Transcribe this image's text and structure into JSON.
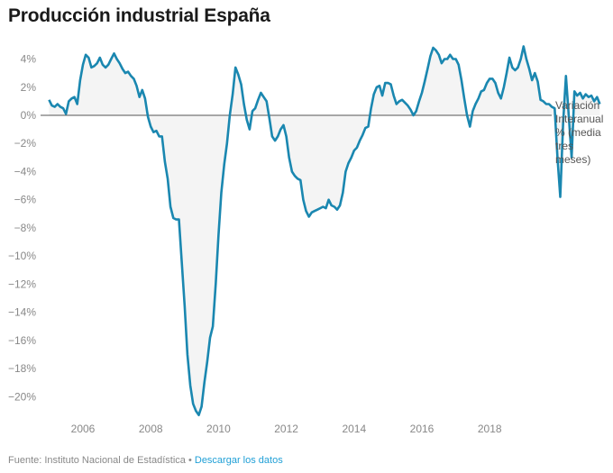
{
  "chart_data": {
    "type": "area",
    "title": "Producción industrial España",
    "xlabel": "",
    "ylabel": "",
    "series_label_lines": [
      "Variación",
      "Interanual",
      "% (media",
      "tres",
      "meses)"
    ],
    "x_start": 2005.0,
    "x_step_months": 1,
    "x_ticks": [
      2006,
      2008,
      2010,
      2012,
      2014,
      2016,
      2018
    ],
    "x_tick_labels": [
      "2006",
      "2008",
      "2010",
      "2012",
      "2014",
      "2016",
      "2018"
    ],
    "xlim": [
      2004.6,
      2019.9
    ],
    "y_ticks": [
      4,
      2,
      0,
      -2,
      -4,
      -6,
      -8,
      -10,
      -12,
      -14,
      -16,
      -18,
      -20
    ],
    "y_tick_labels": [
      "4%",
      "2%",
      "0%",
      "−2%",
      "−4%",
      "−6%",
      "−8%",
      "−10%",
      "−12%",
      "−14%",
      "−16%",
      "−18%",
      "−20%"
    ],
    "ylim": [
      -21.5,
      5
    ],
    "grid": false,
    "baseline": 0,
    "series": [
      {
        "name": "Variación Interanual % (media tres meses)",
        "color": "#1a87b0",
        "fill": "#f4f4f4",
        "values": [
          1.1,
          0.7,
          0.6,
          0.8,
          0.6,
          0.5,
          0.1,
          1.0,
          1.2,
          1.3,
          0.8,
          2.5,
          3.6,
          4.3,
          4.1,
          3.4,
          3.5,
          3.7,
          4.1,
          3.6,
          3.4,
          3.6,
          4.0,
          4.4,
          4.0,
          3.7,
          3.3,
          3.0,
          3.1,
          2.8,
          2.6,
          2.1,
          1.3,
          1.8,
          1.2,
          -0.1,
          -0.8,
          -1.2,
          -1.1,
          -1.5,
          -1.5,
          -3.3,
          -4.5,
          -6.5,
          -7.3,
          -7.4,
          -7.4,
          -10.5,
          -13.5,
          -17.0,
          -19.2,
          -20.5,
          -21.0,
          -21.3,
          -20.7,
          -19.0,
          -17.5,
          -15.8,
          -15.0,
          -12.0,
          -8.5,
          -5.5,
          -3.5,
          -2.0,
          0.0,
          1.5,
          3.4,
          2.9,
          2.2,
          0.8,
          -0.3,
          -1.0,
          0.3,
          0.5,
          1.1,
          1.6,
          1.3,
          1.0,
          -0.2,
          -1.5,
          -1.8,
          -1.5,
          -1.0,
          -0.7,
          -1.5,
          -3.0,
          -4.0,
          -4.3,
          -4.5,
          -4.6,
          -6.0,
          -6.8,
          -7.2,
          -6.9,
          -6.8,
          -6.7,
          -6.6,
          -6.5,
          -6.6,
          -6.0,
          -6.4,
          -6.5,
          -6.7,
          -6.4,
          -5.5,
          -4.0,
          -3.4,
          -3.0,
          -2.5,
          -2.3,
          -1.8,
          -1.4,
          -0.9,
          -0.8,
          0.5,
          1.5,
          2.0,
          2.1,
          1.4,
          2.3,
          2.3,
          2.2,
          1.4,
          0.8,
          1.0,
          1.1,
          0.9,
          0.7,
          0.4,
          0.0,
          0.3,
          1.0,
          1.6,
          2.4,
          3.3,
          4.2,
          4.8,
          4.6,
          4.3,
          3.7,
          4.0,
          4.0,
          4.3,
          4.0,
          4.0,
          3.6,
          2.5,
          1.2,
          0.0,
          -0.8,
          0.3,
          0.8,
          1.2,
          1.7,
          1.8,
          2.3,
          2.6,
          2.6,
          2.3,
          1.6,
          1.2,
          2.0,
          3.0,
          4.1,
          3.4,
          3.2,
          3.4,
          4.0,
          4.9,
          4.0,
          3.3,
          2.5,
          3.0,
          2.4,
          1.1,
          1.0,
          0.8,
          0.8,
          0.6,
          0.5,
          -3.0,
          -5.8,
          -0.5,
          2.8,
          0.0,
          -3.0,
          1.7,
          1.4,
          1.6,
          1.2,
          1.5,
          1.3,
          1.4,
          1.0,
          1.3,
          0.8
        ]
      }
    ]
  },
  "footer": {
    "source": "Fuente: Instituto Nacional de Estadística",
    "separator": "•",
    "download_link": "Descargar los datos"
  },
  "colors": {
    "line": "#1a87b0",
    "area": "#f4f4f4",
    "zero_line": "#555555",
    "tick_text": "#888888",
    "link": "#1f9fd6"
  }
}
